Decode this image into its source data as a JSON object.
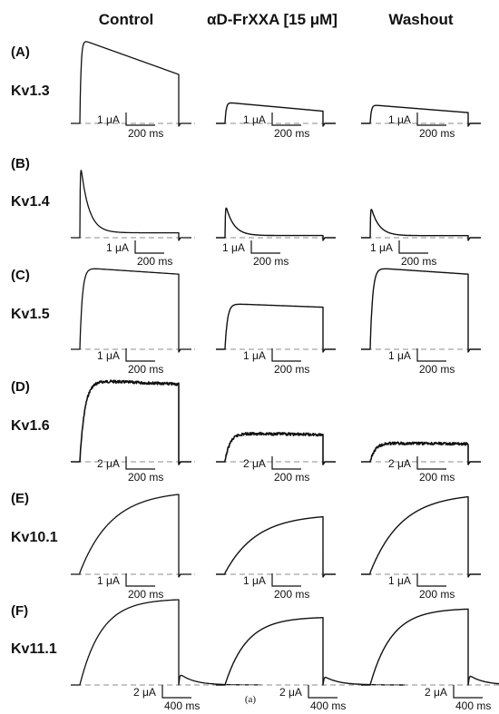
{
  "columns": [
    "Control",
    "αD-FrXXA [15 μM]",
    "Washout"
  ],
  "caption": "(a)",
  "panels": [
    {
      "letter": "(A)",
      "channel": "Kv1.3",
      "scales": [
        {
          "current": "1 μA",
          "time": "200 ms"
        },
        {
          "current": "1 μA",
          "time": "200 ms"
        },
        {
          "current": "1 μA",
          "time": "200 ms"
        }
      ],
      "relative_amplitude": [
        1.0,
        0.25,
        0.22
      ]
    },
    {
      "letter": "(B)",
      "channel": "Kv1.4",
      "scales": [
        {
          "current": "1 μA",
          "time": "200 ms"
        },
        {
          "current": "1 μA",
          "time": "200 ms"
        },
        {
          "current": "1 μA",
          "time": "200 ms"
        }
      ],
      "relative_amplitude": [
        1.0,
        0.44,
        0.42
      ]
    },
    {
      "letter": "(C)",
      "channel": "Kv1.5",
      "scales": [
        {
          "current": "1 μA",
          "time": "200 ms"
        },
        {
          "current": "1 μA",
          "time": "200 ms"
        },
        {
          "current": "1 μA",
          "time": "200 ms"
        }
      ],
      "relative_amplitude": [
        1.0,
        0.56,
        1.0
      ]
    },
    {
      "letter": "(D)",
      "channel": "Kv1.6",
      "scales": [
        {
          "current": "2 μA",
          "time": "200 ms"
        },
        {
          "current": "2 μA",
          "time": "200 ms"
        },
        {
          "current": "2 μA",
          "time": "200 ms"
        }
      ],
      "relative_amplitude": [
        1.0,
        0.35,
        0.23
      ]
    },
    {
      "letter": "(E)",
      "channel": "Kv10.1",
      "scales": [
        {
          "current": "1 μA",
          "time": "200 ms"
        },
        {
          "current": "1 μA",
          "time": "200 ms"
        },
        {
          "current": "1 μA",
          "time": "200 ms"
        }
      ],
      "relative_amplitude": [
        1.0,
        0.72,
        0.97
      ]
    },
    {
      "letter": "(F)",
      "channel": "Kv11.1",
      "scales": [
        {
          "current": "2 μA",
          "time": "400 ms"
        },
        {
          "current": "2 μA",
          "time": "400 ms"
        },
        {
          "current": "2 μA",
          "time": "400 ms"
        }
      ],
      "relative_amplitude": [
        1.0,
        0.79,
        0.89
      ]
    }
  ]
}
